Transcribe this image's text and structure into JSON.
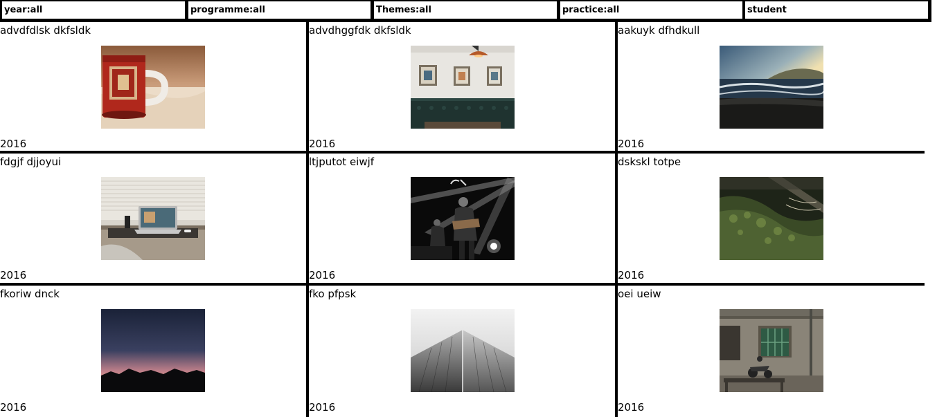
{
  "filters": {
    "year": "year:all",
    "programme": "programme:all",
    "themes": "Themes:all",
    "practice": "practice:all",
    "student": "student"
  },
  "projects": [
    {
      "title": "advdfdlsk dkfsldk",
      "year": "2016",
      "image": "coffee-mug-photo"
    },
    {
      "title": "advdhggfdk dkfsldk",
      "year": "2016",
      "image": "cafe-interior-photo"
    },
    {
      "title": "aakuyk dfhdkull",
      "year": "2016",
      "image": "beach-waves-photo"
    },
    {
      "title": "fdgjf djjoyui",
      "year": "2016",
      "image": "laptop-desk-photo"
    },
    {
      "title": "ltjputot eiwjf",
      "year": "2016",
      "image": "concert-musicians-photo"
    },
    {
      "title": "dskskl totpe",
      "year": "2016",
      "image": "mossy-rock-photo"
    },
    {
      "title": "fkoriw dnck",
      "year": "2016",
      "image": "sunset-mountains-photo"
    },
    {
      "title": "fko pfpsk",
      "year": "2016",
      "image": "skyscraper-photo"
    },
    {
      "title": "oei ueiw",
      "year": "2016",
      "image": "old-building-motorbike-photo"
    }
  ]
}
